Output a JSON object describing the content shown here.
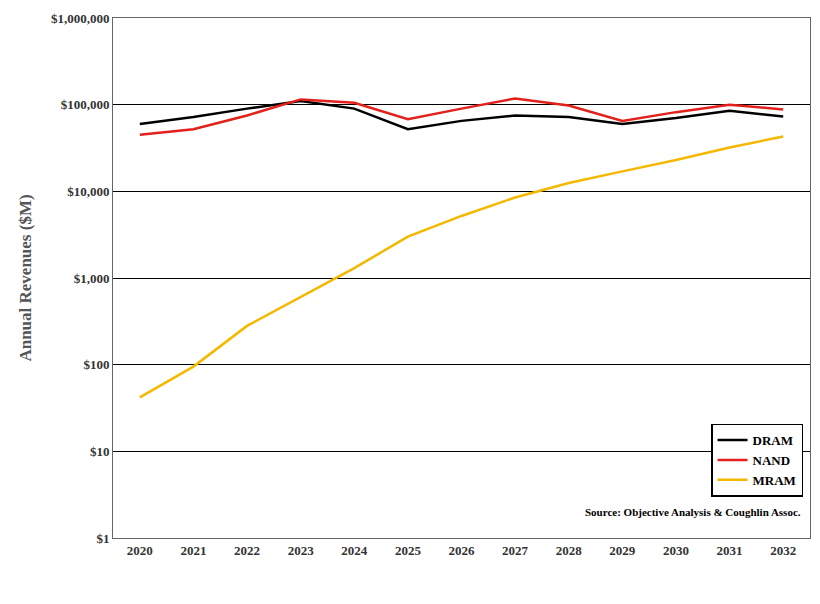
{
  "chart_data": {
    "type": "line",
    "y_label": "Annual Revenues ($M)",
    "annotation": "Source: Objective Analysis & Coughlin Assoc.",
    "categories": [
      "2020",
      "2021",
      "2022",
      "2023",
      "2024",
      "2025",
      "2026",
      "2027",
      "2028",
      "2029",
      "2030",
      "2031",
      "2032"
    ],
    "series": [
      {
        "name": "DRAM",
        "color": "#000000",
        "values": [
          60000,
          72000,
          90000,
          110000,
          90000,
          52000,
          65000,
          75000,
          72000,
          60000,
          70000,
          85000,
          73000
        ]
      },
      {
        "name": "NAND",
        "color": "#e3201b",
        "values": [
          45000,
          52000,
          75000,
          115000,
          105000,
          68000,
          90000,
          118000,
          98000,
          65000,
          82000,
          100000,
          88000
        ]
      },
      {
        "name": "MRAM",
        "color": "#f5b800",
        "values": [
          42,
          95,
          280,
          600,
          1300,
          3000,
          5200,
          8500,
          12500,
          17000,
          23000,
          32000,
          43000
        ]
      }
    ],
    "log": "y",
    "ylim": [
      1,
      1000000
    ],
    "yticks": [
      {
        "value": 1,
        "label": "$1"
      },
      {
        "value": 10,
        "label": "$10"
      },
      {
        "value": 100,
        "label": "$100"
      },
      {
        "value": 1000,
        "label": "$1,000"
      },
      {
        "value": 10000,
        "label": "$10,000"
      },
      {
        "value": 100000,
        "label": "$100,000"
      },
      {
        "value": 1000000,
        "label": "$1,000,000"
      }
    ],
    "grid": true,
    "legend": "bottom right"
  }
}
